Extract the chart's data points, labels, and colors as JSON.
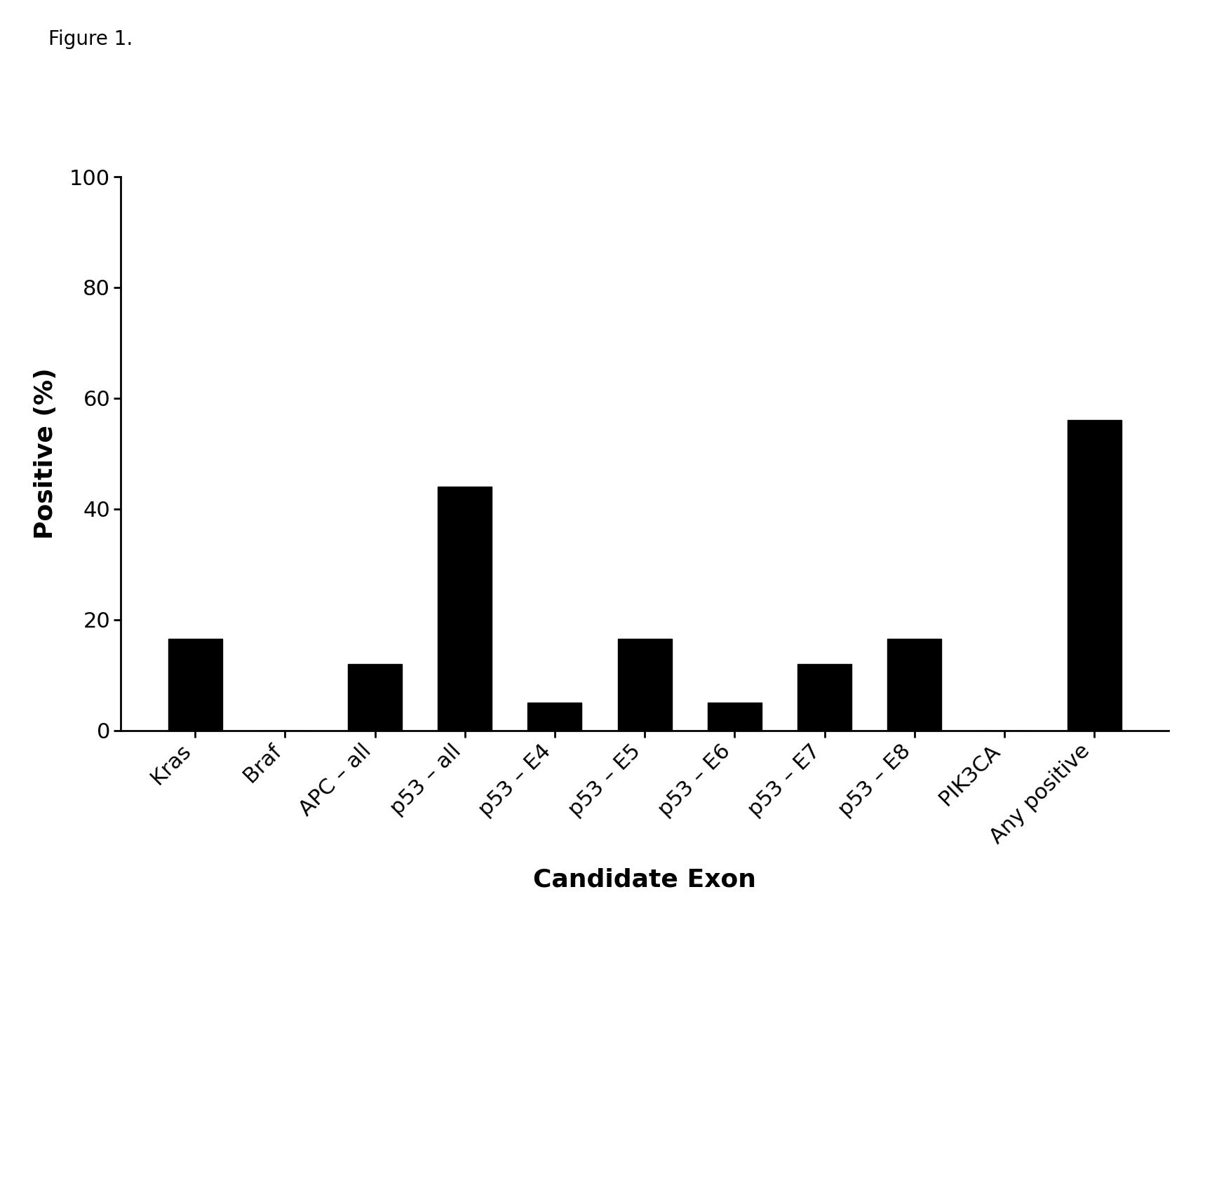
{
  "categories": [
    "Kras",
    "Braf",
    "APC – all",
    "p53 – all",
    "p53 – E4",
    "p53 – E5",
    "p53 – E6",
    "p53 – E7",
    "p53 – E8",
    "PIK3CA",
    "Any positive"
  ],
  "values": [
    16.5,
    0,
    12,
    44,
    5,
    16.5,
    5,
    12,
    16.5,
    0,
    56
  ],
  "bar_color": "#000000",
  "ylabel": "Positive (%)",
  "xlabel": "Candidate Exon",
  "ylim": [
    0,
    100
  ],
  "yticks": [
    0,
    20,
    40,
    60,
    80,
    100
  ],
  "figure_label": "Figure 1.",
  "background_color": "#ffffff",
  "ylabel_fontsize": 26,
  "xlabel_fontsize": 26,
  "tick_fontsize": 22,
  "figure_label_fontsize": 20,
  "bar_width": 0.6
}
